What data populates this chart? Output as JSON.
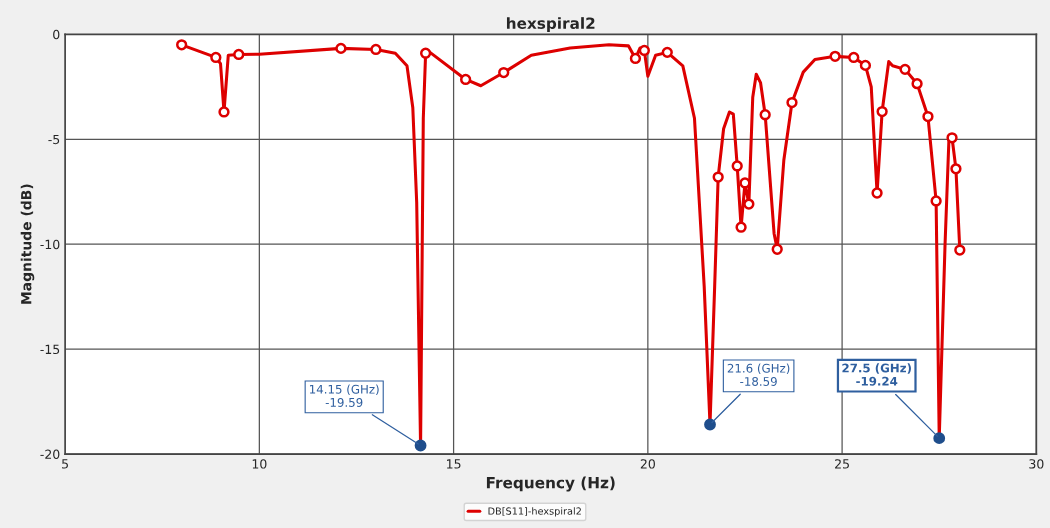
{
  "chart_data": {
    "type": "line",
    "title": "hexspiral2",
    "xlabel": "Frequency (Hz)",
    "ylabel": "Magnitude (dB)",
    "xlim": [
      5,
      30
    ],
    "xticks": [
      5,
      10,
      15,
      20,
      25,
      30
    ],
    "ylim": [
      -20,
      0
    ],
    "yticks": [
      -20,
      -15,
      -10,
      -5,
      0
    ],
    "grid": true,
    "legend": "bottom",
    "series": [
      {
        "name": "DB[S11]-hexspiral2",
        "color": "#dd0000",
        "marker": "none",
        "x": [
          8.0,
          8.88,
          9.0,
          9.09,
          9.2,
          9.47,
          10.0,
          12.1,
          13.0,
          13.5,
          13.8,
          13.95,
          14.05,
          14.15,
          14.22,
          14.28,
          14.35,
          15.31,
          15.7,
          16.29,
          17.0,
          18.0,
          19.0,
          19.5,
          19.68,
          19.8,
          19.91,
          20.0,
          20.2,
          20.5,
          20.9,
          21.2,
          21.45,
          21.6,
          21.72,
          21.81,
          21.95,
          22.1,
          22.2,
          22.3,
          22.4,
          22.5,
          22.6,
          22.7,
          22.79,
          22.9,
          23.02,
          23.25,
          23.33,
          23.5,
          23.71,
          24.0,
          24.3,
          24.82,
          25.3,
          25.6,
          25.75,
          25.9,
          26.03,
          26.2,
          26.3,
          26.62,
          26.93,
          27.21,
          27.42,
          27.5,
          27.65,
          27.75,
          27.83,
          27.93,
          28.03
        ],
        "values": [
          -0.5,
          -1.1,
          -1.4,
          -3.7,
          -1.0,
          -0.96,
          -0.95,
          -0.67,
          -0.72,
          -0.9,
          -1.5,
          -3.5,
          -8,
          -19.59,
          -4,
          -0.9,
          -0.8,
          -2.15,
          -2.45,
          -1.82,
          -1.0,
          -0.65,
          -0.5,
          -0.55,
          -1.15,
          -0.65,
          -0.77,
          -2.0,
          -1.0,
          -0.86,
          -1.5,
          -4,
          -12,
          -18.59,
          -12,
          -6.8,
          -4.5,
          -3.7,
          -3.8,
          -6.27,
          -9.19,
          -7.08,
          -8.09,
          -3.0,
          -1.9,
          -2.3,
          -3.83,
          -9.5,
          -10.24,
          -6,
          -3.25,
          -1.8,
          -1.2,
          -1.05,
          -1.1,
          -1.48,
          -2.5,
          -7.56,
          -3.68,
          -1.3,
          -1.5,
          -1.67,
          -2.35,
          -3.92,
          -7.94,
          -19.24,
          -10,
          -5,
          -4.93,
          -6.41,
          -10.28
        ]
      },
      {
        "type": "scatter",
        "color": "#dd0000",
        "marker": "circle",
        "x": [
          8.0,
          8.88,
          9.09,
          9.47,
          12.1,
          13.0,
          14.28,
          15.31,
          16.29,
          19.68,
          19.91,
          20.5,
          21.81,
          22.3,
          22.4,
          22.5,
          22.6,
          23.02,
          23.33,
          23.71,
          24.82,
          25.3,
          25.6,
          25.9,
          26.03,
          26.62,
          26.93,
          27.21,
          27.42,
          27.83,
          27.93,
          28.03
        ],
        "values": [
          -0.5,
          -1.1,
          -3.7,
          -0.96,
          -0.67,
          -0.72,
          -0.9,
          -2.15,
          -1.82,
          -1.15,
          -0.77,
          -0.86,
          -6.8,
          -6.27,
          -9.19,
          -7.08,
          -8.09,
          -3.83,
          -10.24,
          -3.25,
          -1.05,
          -1.1,
          -1.48,
          -7.56,
          -3.68,
          -1.67,
          -2.35,
          -3.92,
          -7.94,
          -4.93,
          -6.41,
          -10.28
        ]
      },
      {
        "type": "scatter",
        "color": "#1f4e8c",
        "marker": "circle",
        "x": [
          14.15,
          21.6,
          27.5
        ],
        "values": [
          -19.59,
          -18.59,
          -19.24
        ]
      }
    ],
    "annotations": [
      {
        "text": "14.15 (GHz)\n-19.59",
        "x": 14.15,
        "y": -19.59
      },
      {
        "text": "21.6 (GHz)\n-18.59",
        "x": 21.6,
        "y": -18.59
      },
      {
        "text": "27.5 (GHz)\n-19.24",
        "x": 27.5,
        "y": -19.24
      }
    ]
  }
}
